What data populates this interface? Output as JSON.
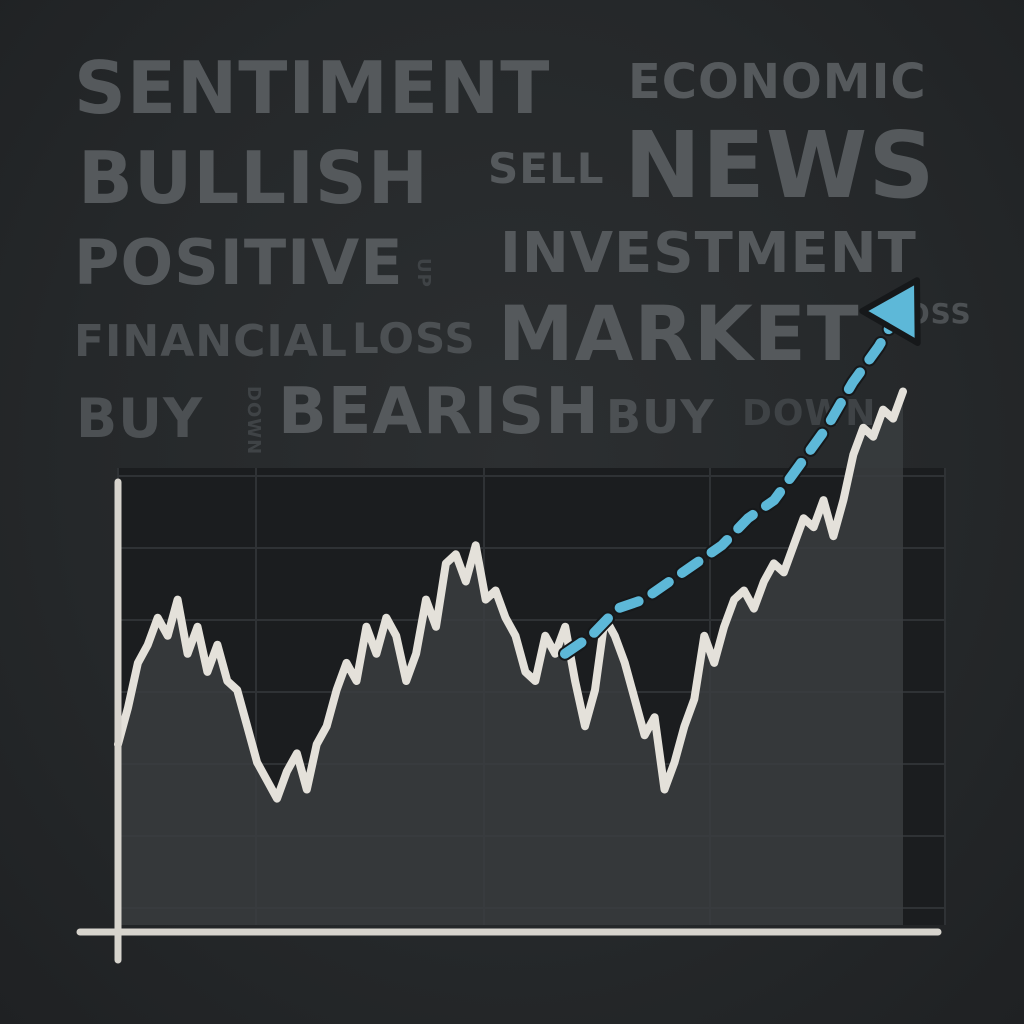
{
  "words": {
    "sentiment": "SENTIMENT",
    "economic": "ECONOMIC",
    "bullish": "BULLISH",
    "sell": "SELL",
    "news": "NEWS",
    "positive": "POSITIVE",
    "investment": "INVESTMENT",
    "financial": "FINANCIAL",
    "loss_1": "LOSS",
    "market": "MARKET",
    "loss_2": "LOSS",
    "buy_1": "BUY",
    "bearish": "BEARISH",
    "buy_2": "BUY",
    "down_1": "DOWN",
    "up_small": "UP",
    "down_small": "DOWN"
  },
  "colors": {
    "background": "#25282a",
    "word_text": "#55595c",
    "panel": "#1b1d1f",
    "price_line": "#e4e1da",
    "area_fill": "#3a3d40",
    "forecast": "#5db8d8",
    "axis": "#d7d4cd"
  },
  "chart_data": {
    "type": "line",
    "title": "",
    "xlabel": "",
    "ylabel": "",
    "grid": true,
    "legend": "none",
    "series": [
      {
        "values": [
          30,
          38,
          48,
          52,
          58,
          54,
          62,
          50,
          56,
          46,
          52,
          44,
          42,
          34,
          26,
          22,
          18,
          24,
          28,
          20,
          30,
          34,
          42,
          48,
          44,
          56,
          50,
          58,
          54,
          44,
          50,
          62,
          56,
          70,
          72,
          66,
          74,
          62,
          64,
          58,
          54,
          46,
          44,
          54,
          50,
          56,
          44,
          34,
          42,
          58,
          54,
          48,
          40,
          32,
          36,
          20,
          26,
          34,
          40,
          54,
          48,
          56,
          62,
          64,
          60,
          66,
          70,
          68,
          74,
          80,
          78,
          84,
          76,
          84,
          94,
          100,
          98,
          104,
          102,
          108
        ]
      },
      {
        "name": "forecast",
        "values": [
          50,
          54,
          60,
          62,
          66,
          70,
          74,
          80,
          84,
          92,
          100,
          110,
          118,
          128
        ]
      }
    ]
  }
}
